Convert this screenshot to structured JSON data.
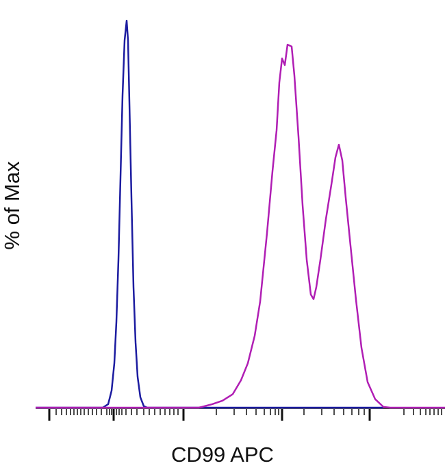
{
  "chart_data": {
    "type": "line",
    "xlabel": "CD99 APC",
    "ylabel": "% of Max",
    "xlim": [
      50,
      650
    ],
    "ylim": [
      0,
      102
    ],
    "xticks": [
      72,
      166,
      268,
      412,
      540
    ],
    "xminorticks": [
      82,
      90,
      97,
      103,
      108,
      113,
      118,
      123,
      129,
      135,
      141,
      148,
      156,
      160,
      163,
      170,
      174,
      178,
      184,
      192,
      200,
      210,
      218,
      226,
      234,
      241,
      248,
      254,
      260,
      316,
      342,
      360,
      374,
      386,
      395,
      402,
      407,
      444,
      470,
      488,
      502,
      514,
      524,
      532,
      590,
      604,
      614,
      622,
      628,
      634,
      640,
      645
    ],
    "series": [
      {
        "color": "#1c1ca0",
        "x": [
          52,
          150,
          158,
          163,
          167,
          170,
          173,
          176,
          179,
          182,
          185,
          187,
          189,
          192,
          195,
          198,
          201,
          205,
          210,
          215,
          560
        ],
        "values": [
          0,
          0,
          0.9,
          4.4,
          11.5,
          22.2,
          38.3,
          59.6,
          80.9,
          95.1,
          100.2,
          95.1,
          79.1,
          54.3,
          31.2,
          16.9,
          8.0,
          2.7,
          0.4,
          0,
          0
        ]
      },
      {
        "color": "#b01eb4",
        "x": [
          52,
          290,
          295,
          310,
          325,
          340,
          352,
          362,
          372,
          380,
          390,
          398,
          404,
          408,
          412,
          416,
          420,
          426,
          430,
          436,
          442,
          448,
          454,
          458,
          462,
          468,
          476,
          484,
          490,
          495,
          500,
          505,
          512,
          520,
          528,
          537,
          548,
          560,
          570,
          650
        ],
        "values": [
          0,
          0,
          0.2,
          0.9,
          1.8,
          3.5,
          7.1,
          11.5,
          18.6,
          27.5,
          45.2,
          61.2,
          71.8,
          84.2,
          90.4,
          88.7,
          94.0,
          93.5,
          86.0,
          70.2,
          52.4,
          38.3,
          29.3,
          28.1,
          31.2,
          38.3,
          48.8,
          57.7,
          64.8,
          68.1,
          64.0,
          54.3,
          41.9,
          27.9,
          15.5,
          6.6,
          2.2,
          0.2,
          0,
          0
        ]
      }
    ]
  }
}
